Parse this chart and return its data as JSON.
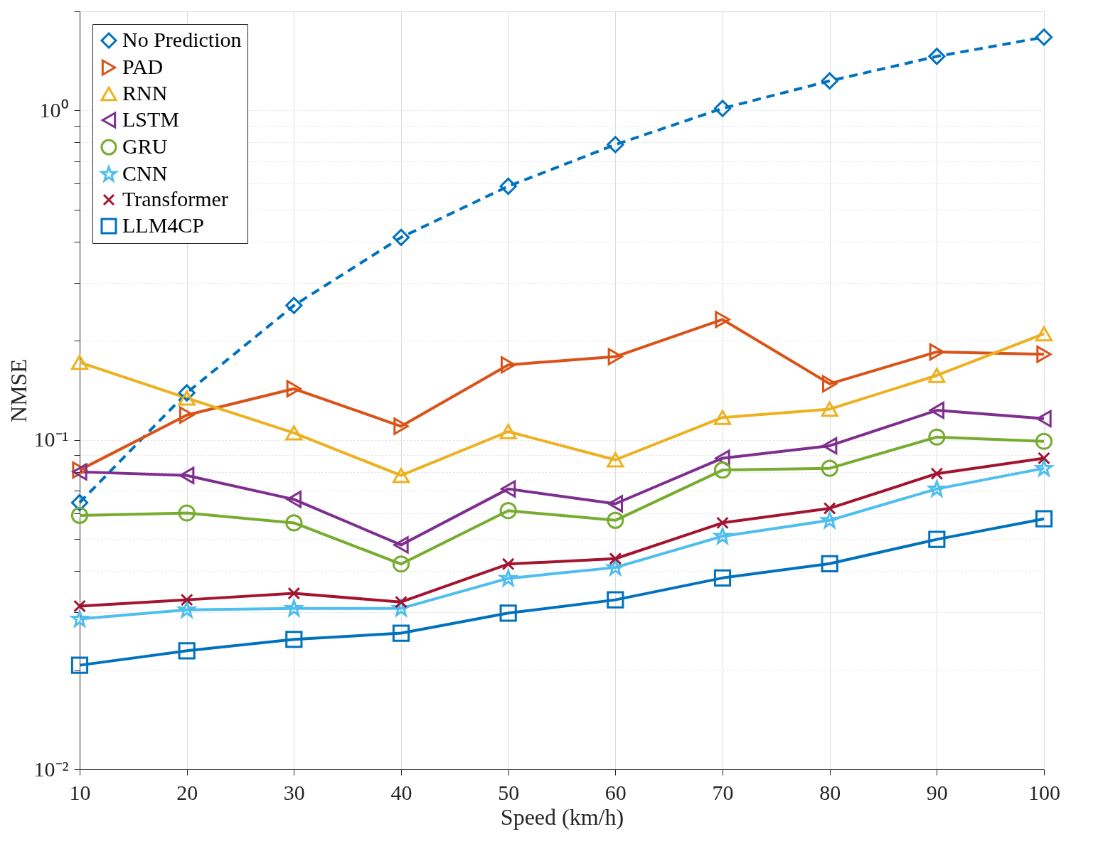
{
  "chart_data": {
    "type": "line",
    "xlabel": "Speed (km/h)",
    "ylabel": "NMSE",
    "log": "y",
    "grid": true,
    "legend": "top left",
    "x": [
      10,
      20,
      30,
      40,
      50,
      60,
      70,
      80,
      90,
      100
    ],
    "xlim": [
      10,
      100
    ],
    "xticks": [
      10,
      20,
      30,
      40,
      50,
      60,
      70,
      80,
      90,
      100
    ],
    "ylim": [
      0.01,
      2
    ],
    "yticks": [
      {
        "value": 0.01,
        "label": "10⁻²"
      },
      {
        "value": 0.02,
        "label": null
      },
      {
        "value": 0.03,
        "label": null
      },
      {
        "value": 0.04,
        "label": null
      },
      {
        "value": 0.05,
        "label": null
      },
      {
        "value": 0.06,
        "label": null
      },
      {
        "value": 0.07,
        "label": null
      },
      {
        "value": 0.08,
        "label": null
      },
      {
        "value": 0.09,
        "label": null
      },
      {
        "value": 0.1,
        "label": "10⁻¹"
      },
      {
        "value": 0.2,
        "label": null
      },
      {
        "value": 0.3,
        "label": null
      },
      {
        "value": 0.4,
        "label": null
      },
      {
        "value": 0.5,
        "label": null
      },
      {
        "value": 0.6,
        "label": null
      },
      {
        "value": 0.7,
        "label": null
      },
      {
        "value": 0.8,
        "label": null
      },
      {
        "value": 0.9,
        "label": null
      },
      {
        "value": 1,
        "label": "10⁰"
      },
      {
        "value": 2,
        "label": null
      }
    ],
    "series": [
      {
        "name": "No Prediction",
        "color": "#0072bd",
        "marker": "diamond",
        "line_style": "dashed",
        "values": [
          0.0645,
          0.139,
          0.256,
          0.412,
          0.589,
          0.788,
          1.015,
          1.23,
          1.46,
          1.67
        ]
      },
      {
        "name": "PAD",
        "color": "#d95319",
        "marker": "triangle-right",
        "line_style": "solid",
        "values": [
          0.081,
          0.119,
          0.143,
          0.11,
          0.169,
          0.179,
          0.232,
          0.148,
          0.185,
          0.182
        ]
      },
      {
        "name": "RNN",
        "color": "#edb120",
        "marker": "triangle-up",
        "line_style": "solid",
        "values": [
          0.172,
          0.134,
          0.105,
          0.078,
          0.106,
          0.087,
          0.117,
          0.124,
          0.157,
          0.21
        ]
      },
      {
        "name": "LSTM",
        "color": "#7e2f8e",
        "marker": "triangle-left",
        "line_style": "solid",
        "values": [
          0.08,
          0.078,
          0.066,
          0.048,
          0.071,
          0.064,
          0.088,
          0.096,
          0.123,
          0.116
        ]
      },
      {
        "name": "GRU",
        "color": "#77ac30",
        "marker": "circle",
        "line_style": "solid",
        "values": [
          0.059,
          0.06,
          0.056,
          0.042,
          0.061,
          0.057,
          0.081,
          0.082,
          0.102,
          0.099
        ]
      },
      {
        "name": "CNN",
        "color": "#4dbeee",
        "marker": "star",
        "line_style": "solid",
        "values": [
          0.0286,
          0.0305,
          0.0308,
          0.0308,
          0.038,
          0.041,
          0.051,
          0.057,
          0.071,
          0.082
        ]
      },
      {
        "name": "Transformer",
        "color": "#a2142f",
        "marker": "cross",
        "line_style": "solid",
        "values": [
          0.0313,
          0.0327,
          0.0342,
          0.0322,
          0.042,
          0.0436,
          0.056,
          0.062,
          0.079,
          0.088
        ]
      },
      {
        "name": "LLM4CP",
        "color": "#0072bd",
        "marker": "square",
        "line_style": "solid",
        "values": [
          0.0207,
          0.0229,
          0.0248,
          0.0259,
          0.0298,
          0.0327,
          0.0381,
          0.0421,
          0.0499,
          0.0576
        ]
      }
    ]
  }
}
